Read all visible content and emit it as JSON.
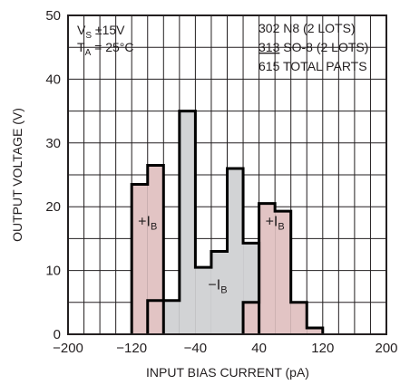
{
  "chart_data": {
    "type": "bar",
    "title": "",
    "xlabel": "INPUT BIAS CURRENT (pA)",
    "ylabel": "OUTPUT VOLTAGE (V)",
    "xlim": [
      -200,
      200
    ],
    "ylim": [
      0,
      50
    ],
    "x_ticks": [
      "-200",
      "-120",
      "-40",
      "40",
      "120",
      "200"
    ],
    "y_ticks": [
      "0",
      "10",
      "20",
      "30",
      "40",
      "50"
    ],
    "x_tick_values": [
      -200,
      -120,
      -40,
      40,
      120,
      200
    ],
    "y_tick_values": [
      0,
      10,
      20,
      30,
      40,
      50
    ],
    "grid": true,
    "bin_width": 20,
    "conditions": {
      "vs_main": "V",
      "vs_sub": "S",
      "vs_value": " ±15V",
      "ta_main": "T",
      "ta_sub": "A",
      "ta_value": " = 25°C"
    },
    "legend": {
      "line1": "302 N8 (2 LOTS)",
      "line2_count": "313",
      "line2_rest": " SO-8 (2 LOTS)",
      "line3_count": "615",
      "line3_rest": " TOTAL PARTS"
    },
    "series": [
      {
        "name_main": "−I",
        "name_sub": "B",
        "color": "#d2d3d5",
        "label_x": -12,
        "label_y": 7,
        "bins": [
          {
            "x0": -100,
            "x1": -80,
            "value": 5.3
          },
          {
            "x0": -80,
            "x1": -60,
            "value": 5.3
          },
          {
            "x0": -60,
            "x1": -40,
            "value": 35
          },
          {
            "x0": -40,
            "x1": -20,
            "value": 10.5
          },
          {
            "x0": -20,
            "x1": 0,
            "value": 13
          },
          {
            "x0": 0,
            "x1": 20,
            "value": 26
          },
          {
            "x0": 20,
            "x1": 40,
            "value": 14.3
          }
        ]
      },
      {
        "name_main": "+I",
        "name_sub": "B",
        "color": "#e2c4c4",
        "label_x": -100,
        "label_y": 17,
        "bins": [
          {
            "x0": -120,
            "x1": -100,
            "value": 23.5
          },
          {
            "x0": -100,
            "x1": -80,
            "value": 26.5
          }
        ]
      },
      {
        "name_main": "+I",
        "name_sub": "B",
        "color": "#e2c4c4",
        "label_x": 60,
        "label_y": 17,
        "bins": [
          {
            "x0": 20,
            "x1": 40,
            "value": 5
          },
          {
            "x0": 40,
            "x1": 60,
            "value": 20.5
          },
          {
            "x0": 60,
            "x1": 80,
            "value": 19.3
          },
          {
            "x0": 80,
            "x1": 100,
            "value": 5
          },
          {
            "x0": 100,
            "x1": 120,
            "value": 1
          }
        ]
      }
    ]
  }
}
